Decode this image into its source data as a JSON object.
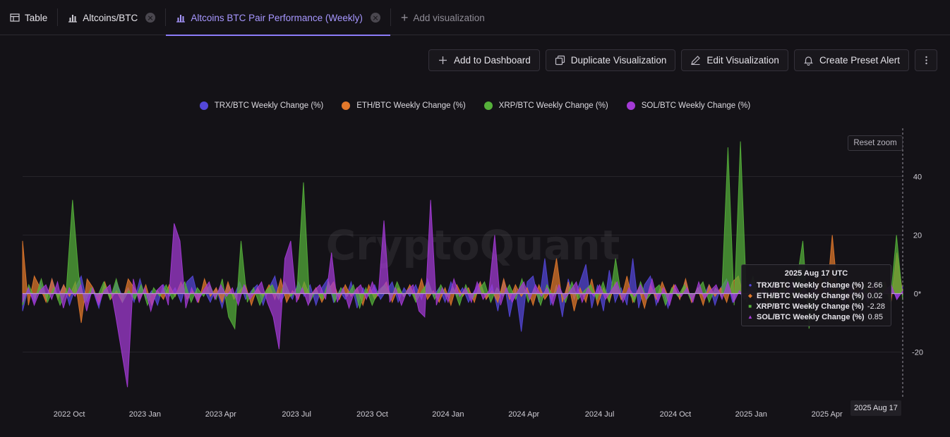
{
  "tabs": [
    {
      "label": "Table",
      "icon": "table-icon",
      "closable": false
    },
    {
      "label": "Altcoins/BTC",
      "icon": "bar-chart-icon",
      "closable": true
    },
    {
      "label": "Altcoins BTC Pair Performance (Weekly)",
      "icon": "bar-chart-icon",
      "closable": true,
      "active": true
    }
  ],
  "add_tab_label": "Add visualization",
  "toolbar": {
    "add_dashboard": "Add to Dashboard",
    "duplicate": "Duplicate Visualization",
    "edit": "Edit Visualization",
    "alert": "Create Preset Alert"
  },
  "reset_zoom": "Reset zoom",
  "watermark": "CryptoQuant",
  "crosshair_date": "2025 Aug 17",
  "tooltip": {
    "title": "2025 Aug 17 UTC",
    "rows": [
      {
        "marker": "●",
        "name": "TRX/BTC Weekly Change (%)",
        "value": "2.66",
        "color": "#5447d9"
      },
      {
        "marker": "◆",
        "name": "ETH/BTC Weekly Change (%)",
        "value": "0.02",
        "color": "#e2782b"
      },
      {
        "marker": "■",
        "name": "XRP/BTC Weekly Change (%)",
        "value": "-2.28",
        "color": "#55b03a"
      },
      {
        "marker": "▲",
        "name": "SOL/BTC Weekly Change (%)",
        "value": "0.85",
        "color": "#a43ad6"
      }
    ]
  },
  "chart_data": {
    "type": "area",
    "title": "",
    "xlabel": "",
    "ylabel": "",
    "ylim": [
      -37,
      57
    ],
    "y_ticks": [
      40,
      20,
      0,
      -20
    ],
    "y_tick_labels": [
      "40",
      "20",
      "0*",
      "-20"
    ],
    "x_tick_labels": [
      "2022 Oct",
      "2023 Jan",
      "2023 Apr",
      "2023 Jul",
      "2023 Oct",
      "2024 Jan",
      "2024 Apr",
      "2024 Jul",
      "2024 Oct",
      "2025 Jan",
      "2025 Apr"
    ],
    "x_tick_weeks": [
      8,
      21,
      34,
      47,
      60,
      73,
      86,
      99,
      112,
      125,
      138
    ],
    "x_range_weeks": [
      0,
      151
    ],
    "legend_position": "top-center",
    "series": [
      {
        "name": "TRX/BTC Weekly Change (%)",
        "color": "#5447d9",
        "values": [
          -6,
          2,
          -3,
          4,
          -2,
          5,
          -1,
          3,
          -4,
          2,
          6,
          -3,
          1,
          -5,
          3,
          -2,
          4,
          -1,
          2,
          -3,
          5,
          -2,
          1,
          -4,
          3,
          -1,
          2,
          -3,
          4,
          6,
          -2,
          1,
          -3,
          2,
          -5,
          3,
          -1,
          4,
          -2,
          1,
          3,
          -4,
          2,
          6,
          -3,
          1,
          -2,
          4,
          -1,
          3,
          -4,
          2,
          5,
          -3,
          1,
          -2,
          4,
          -5,
          2,
          -1,
          3,
          -2,
          1,
          4,
          -3,
          2,
          -1,
          3,
          -2,
          5,
          -1,
          2,
          -3,
          4,
          -1,
          2,
          -3,
          1,
          4,
          -2,
          3,
          -6,
          5,
          -8,
          2,
          -13,
          4,
          6,
          -3,
          12,
          -4,
          3,
          -8,
          5,
          -2,
          4,
          10,
          -5,
          3,
          -6,
          8,
          -3,
          2,
          -4,
          12,
          -5,
          3,
          6,
          -4,
          2,
          -5,
          3,
          -2,
          4,
          -3,
          2,
          -1,
          3,
          -4,
          2,
          5,
          -3,
          1,
          -2,
          4,
          -3,
          2,
          -1,
          3,
          -2,
          1,
          4,
          -3,
          2,
          -1,
          3,
          -2,
          5,
          -3,
          2,
          -4,
          3,
          -1,
          2,
          -3,
          4,
          -2,
          1,
          3,
          -2,
          2.66
        ]
      },
      {
        "name": "ETH/BTC Weekly Change (%)",
        "color": "#e2782b",
        "values": [
          18,
          -4,
          6,
          2,
          -3,
          5,
          -2,
          3,
          -1,
          4,
          -10,
          5,
          2,
          -3,
          4,
          -2,
          1,
          -3,
          5,
          2,
          -2,
          3,
          -4,
          1,
          -2,
          3,
          -1,
          4,
          -2,
          1,
          -3,
          5,
          -1,
          2,
          -3,
          4,
          -2,
          1,
          3,
          -4,
          2,
          -1,
          3,
          -2,
          5,
          -3,
          1,
          -2,
          4,
          -1,
          2,
          -3,
          1,
          4,
          -2,
          3,
          -1,
          2,
          -4,
          3,
          -2,
          1,
          4,
          -3,
          2,
          -1,
          3,
          -2,
          5,
          -2,
          1,
          -3,
          2,
          -4,
          3,
          -1,
          2,
          -3,
          4,
          -2,
          1,
          -3,
          5,
          -2,
          3,
          -1,
          2,
          -4,
          3,
          -2,
          1,
          12,
          -3,
          4,
          -6,
          2,
          -3,
          5,
          -4,
          2,
          -3,
          4,
          -2,
          6,
          -3,
          2,
          -5,
          3,
          -2,
          4,
          -1,
          3,
          -2,
          5,
          -3,
          2,
          -4,
          3,
          -1,
          2,
          -3,
          4,
          6,
          -2,
          1,
          -3,
          2,
          -5,
          3,
          -1,
          4,
          -2,
          1,
          3,
          -4,
          2,
          6,
          -3,
          20,
          -2,
          1,
          -3,
          4,
          -2,
          1,
          3,
          -2,
          4,
          -3,
          14,
          0.02
        ]
      },
      {
        "name": "XRP/BTC Weekly Change (%)",
        "color": "#55b03a",
        "values": [
          -4,
          3,
          -2,
          5,
          -3,
          2,
          -4,
          1,
          32,
          6,
          -3,
          2,
          -1,
          4,
          -2,
          5,
          -3,
          1,
          -2,
          3,
          -4,
          2,
          -1,
          3,
          -2,
          1,
          4,
          -3,
          2,
          -1,
          3,
          -2,
          5,
          -8,
          -12,
          18,
          -3,
          2,
          -4,
          1,
          3,
          -2,
          4,
          -1,
          2,
          38,
          -3,
          1,
          -2,
          4,
          -3,
          2,
          -1,
          3,
          -5,
          2,
          -4,
          1,
          3,
          -2,
          4,
          -1,
          2,
          -3,
          1,
          4,
          -2,
          3,
          -1,
          2,
          -4,
          3,
          -2,
          1,
          4,
          -3,
          2,
          -1,
          3,
          -2,
          5,
          -3,
          2,
          -4,
          3,
          -1,
          2,
          -3,
          4,
          -2,
          1,
          3,
          -2,
          4,
          -3,
          12,
          -2,
          1,
          -3,
          4,
          -2,
          1,
          3,
          -4,
          2,
          -1,
          3,
          -2,
          1,
          4,
          -3,
          2,
          -1,
          50,
          -4,
          52,
          -3,
          6,
          -2,
          3,
          -4,
          1,
          2,
          -3,
          4,
          18,
          -12,
          2,
          -3,
          5,
          -2,
          3,
          -1,
          2,
          -4,
          3,
          -2,
          1,
          4,
          -3,
          20,
          -2.28
        ]
      },
      {
        "name": "SOL/BTC Weekly Change (%)",
        "color": "#a43ad6",
        "values": [
          -3,
          2,
          -4,
          1,
          3,
          -2,
          4,
          -5,
          2,
          -1,
          3,
          -6,
          2,
          -4,
          1,
          3,
          -8,
          -20,
          -32,
          5,
          -3,
          2,
          -6,
          1,
          3,
          -4,
          24,
          18,
          -5,
          2,
          -3,
          1,
          4,
          -2,
          3,
          -1,
          2,
          -4,
          3,
          -2,
          1,
          4,
          -3,
          -8,
          -19,
          12,
          18,
          -3,
          2,
          -4,
          1,
          3,
          -2,
          14,
          -3,
          2,
          -5,
          1,
          3,
          -2,
          4,
          -1,
          25,
          -3,
          2,
          -4,
          1,
          3,
          -6,
          -8,
          32,
          -4,
          2,
          -3,
          5,
          -1,
          2,
          -3,
          4,
          -2,
          1,
          20,
          -4,
          2,
          -3,
          1,
          4,
          -2,
          3,
          -1,
          2,
          -4,
          3,
          -2,
          1,
          4,
          -3,
          2,
          -1,
          3,
          -2,
          1,
          4,
          -3,
          2,
          -1,
          3,
          -2,
          5,
          -3,
          2,
          -4,
          3,
          -1,
          2,
          -3,
          4,
          -2,
          1,
          3,
          -2,
          4,
          -3,
          1,
          -2,
          3,
          -4,
          2,
          -1,
          3,
          -2,
          1,
          4,
          -3,
          2,
          -1,
          3,
          -2,
          5,
          -3,
          2,
          -4,
          3,
          -1,
          2,
          -3,
          4,
          -2,
          1,
          3,
          -2,
          0.85
        ]
      }
    ]
  }
}
